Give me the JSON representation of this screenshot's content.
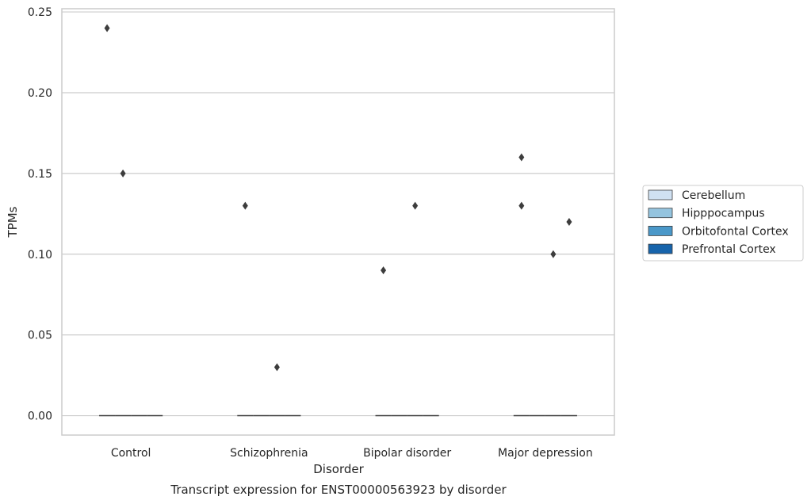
{
  "chart_data": {
    "type": "box",
    "categories": [
      "Control",
      "Schizophrenia",
      "Bipolar disorder",
      "Major depression"
    ],
    "series": [
      {
        "name": "Cerebellum",
        "color": "#d0e1f2",
        "median": [
          0,
          0,
          0,
          0
        ],
        "outliers": [
          [
            0.24
          ],
          [
            0.13
          ],
          [
            0.09
          ],
          [
            0.16,
            0.13
          ]
        ]
      },
      {
        "name": "Hipppocampus",
        "color": "#94c4df",
        "median": [
          0,
          0,
          0,
          0
        ],
        "outliers": [
          [
            0.15
          ],
          [],
          [],
          []
        ]
      },
      {
        "name": "Orbitofontal Cortex",
        "color": "#4a98c9",
        "median": [
          0,
          0,
          0,
          0
        ],
        "outliers": [
          [],
          [
            0.03
          ],
          [
            0.13
          ],
          [
            0.1
          ]
        ]
      },
      {
        "name": "Prefrontal Cortex",
        "color": "#1764ab",
        "median": [
          0,
          0,
          0,
          0
        ],
        "outliers": [
          [],
          [],
          [],
          [
            0.12
          ]
        ]
      }
    ],
    "xlabel": "Disorder",
    "ylabel": "TPMs",
    "ylim": [
      -0.012,
      0.252
    ],
    "yticks": [
      0.0,
      0.05,
      0.1,
      0.15,
      0.2,
      0.25
    ],
    "ytick_labels": [
      "0.00",
      "0.05",
      "0.10",
      "0.15",
      "0.20",
      "0.25"
    ],
    "grid": "horizontal",
    "legend_position": "right",
    "caption": "Transcript expression for ENST00000563923 by disorder"
  }
}
